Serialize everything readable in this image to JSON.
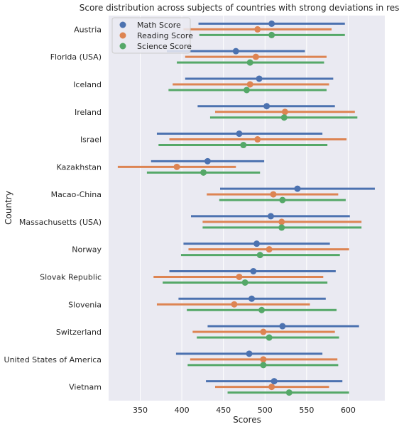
{
  "chart_data": {
    "type": "dot-range",
    "title": "Score distribution across subjects of countries with strong deviations in results",
    "xlabel": "Scores",
    "ylabel": "Country",
    "xlim": [
      312,
      644
    ],
    "xticks": [
      350,
      400,
      450,
      500,
      550,
      600
    ],
    "grid": true,
    "legend_position": "top-left",
    "categories": [
      "Austria",
      "Florida (USA)",
      "Iceland",
      "Ireland",
      "Israel",
      "Kazakhstan",
      "Macao-China",
      "Massachusetts (USA)",
      "Norway",
      "Slovak Republic",
      "Slovenia",
      "Switzerland",
      "United States of America",
      "Vietnam"
    ],
    "series": [
      {
        "name": "Math Score",
        "color": "#4c72b0",
        "means": [
          508,
          465,
          493,
          502,
          469,
          431,
          539,
          507,
          490,
          486,
          484,
          521,
          481,
          511
        ],
        "ranges": [
          [
            420,
            596
          ],
          [
            382,
            548
          ],
          [
            404,
            582
          ],
          [
            419,
            584
          ],
          [
            370,
            569
          ],
          [
            363,
            499
          ],
          [
            446,
            632
          ],
          [
            411,
            602
          ],
          [
            402,
            578
          ],
          [
            385,
            585
          ],
          [
            396,
            573
          ],
          [
            431,
            613
          ],
          [
            393,
            569
          ],
          [
            429,
            593
          ]
        ]
      },
      {
        "name": "Reading Score",
        "color": "#dd8452",
        "means": [
          491,
          489,
          482,
          524,
          491,
          394,
          510,
          520,
          505,
          469,
          463,
          498,
          498,
          508
        ],
        "ranges": [
          [
            402,
            580
          ],
          [
            404,
            574
          ],
          [
            389,
            577
          ],
          [
            440,
            608
          ],
          [
            385,
            598
          ],
          [
            323,
            465
          ],
          [
            430,
            588
          ],
          [
            425,
            616
          ],
          [
            408,
            601
          ],
          [
            366,
            570
          ],
          [
            370,
            554
          ],
          [
            413,
            584
          ],
          [
            410,
            587
          ],
          [
            440,
            577
          ]
        ]
      },
      {
        "name": "Science Score",
        "color": "#55a868",
        "means": [
          508,
          482,
          478,
          523,
          474,
          426,
          521,
          520,
          494,
          476,
          496,
          505,
          498,
          529
        ],
        "ranges": [
          [
            421,
            596
          ],
          [
            394,
            571
          ],
          [
            384,
            574
          ],
          [
            434,
            611
          ],
          [
            372,
            575
          ],
          [
            358,
            494
          ],
          [
            445,
            597
          ],
          [
            425,
            616
          ],
          [
            399,
            590
          ],
          [
            377,
            575
          ],
          [
            406,
            586
          ],
          [
            418,
            589
          ],
          [
            407,
            588
          ],
          [
            455,
            601
          ]
        ]
      }
    ]
  }
}
